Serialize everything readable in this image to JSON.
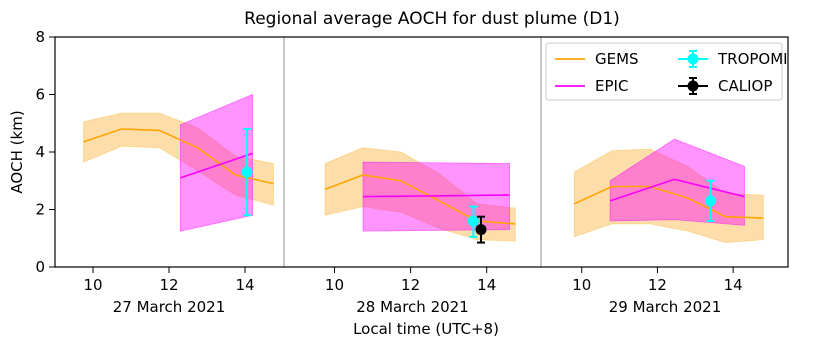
{
  "chart_data": {
    "type": "line",
    "title": "Regional average AOCH for dust plume (D1)",
    "xlabel": "Local time (UTC+8)",
    "ylabel": "AOCH (km)",
    "ylim": [
      0,
      8
    ],
    "yticks": [
      "0",
      "2",
      "4",
      "6",
      "8"
    ],
    "grid": false,
    "legend_position": "top-right",
    "legend": [
      {
        "name": "GEMS",
        "kind": "line",
        "color": "#ffa500"
      },
      {
        "name": "EPIC",
        "kind": "line",
        "color": "#ff00ff"
      },
      {
        "name": "TROPOMI",
        "kind": "errorbar",
        "color": "#00ffff"
      },
      {
        "name": "CALIOP",
        "kind": "errorbar",
        "color": "#000000"
      }
    ],
    "colors": {
      "gems": "#ffa500",
      "gems_fill": "#fcd18d",
      "epic": "#ff00ff",
      "epic_fill": "#ff8cff",
      "overlap_fill": "#fc74ad",
      "tropomi": "#00ffff",
      "caliop": "#000000",
      "separator": "#c8c8c8"
    },
    "panels": [
      {
        "date_label": "27 March 2021",
        "xlim": [
          9.0,
          15.0
        ],
        "xticks": [
          "10",
          "12",
          "14"
        ],
        "gems": {
          "x": [
            9.75,
            10.75,
            11.75,
            12.75,
            13.75,
            14.75
          ],
          "y": [
            4.35,
            4.8,
            4.75,
            4.15,
            3.2,
            2.9
          ],
          "lower": [
            3.65,
            4.2,
            4.15,
            3.35,
            2.5,
            2.15
          ],
          "upper": [
            5.05,
            5.35,
            5.35,
            4.85,
            3.85,
            3.6
          ]
        },
        "epic": {
          "x": [
            12.3,
            14.2
          ],
          "y": [
            3.1,
            3.95
          ],
          "lower": [
            1.25,
            1.8
          ],
          "upper": [
            4.95,
            6.0
          ]
        },
        "tropomi": {
          "x": 14.05,
          "y": 3.3,
          "err_low": 1.5,
          "err_high": 1.5
        },
        "caliop": null
      },
      {
        "date_label": "28 March 2021",
        "xlim": [
          8.7,
          15.4
        ],
        "xticks": [
          "10",
          "12",
          "14"
        ],
        "gems": {
          "x": [
            9.75,
            10.75,
            11.75,
            12.75,
            13.75,
            14.75
          ],
          "y": [
            2.7,
            3.2,
            3.0,
            2.3,
            1.6,
            1.5
          ],
          "lower": [
            1.8,
            2.1,
            1.9,
            1.35,
            0.95,
            0.9
          ],
          "upper": [
            3.6,
            4.15,
            4.0,
            3.25,
            2.2,
            2.05
          ]
        },
        "epic": {
          "x": [
            10.75,
            14.6
          ],
          "y": [
            2.45,
            2.5
          ],
          "lower": [
            1.25,
            1.3
          ],
          "upper": [
            3.65,
            3.6
          ]
        },
        "tropomi": {
          "x": 13.65,
          "y": 1.6,
          "err_low": 0.55,
          "err_high": 0.5
        },
        "caliop": {
          "x": 13.85,
          "y": 1.3,
          "err_low": 0.45,
          "err_high": 0.45
        }
      },
      {
        "date_label": "29 March 2021",
        "xlim": [
          8.95,
          15.45
        ],
        "xticks": [
          "10",
          "12",
          "14"
        ],
        "gems": {
          "x": [
            9.8,
            10.8,
            11.8,
            12.8,
            13.8,
            14.8
          ],
          "y": [
            2.2,
            2.8,
            2.8,
            2.4,
            1.75,
            1.7
          ],
          "lower": [
            1.05,
            1.5,
            1.5,
            1.25,
            0.85,
            0.95
          ],
          "upper": [
            3.3,
            4.05,
            4.1,
            3.5,
            2.55,
            2.5
          ]
        },
        "epic": {
          "x": [
            10.75,
            12.45,
            14.3
          ],
          "y": [
            2.3,
            3.05,
            2.45
          ],
          "lower": [
            1.6,
            1.65,
            1.45
          ],
          "upper": [
            3.0,
            4.45,
            3.5
          ]
        },
        "tropomi": {
          "x": 13.4,
          "y": 2.3,
          "err_low": 0.7,
          "err_high": 0.7
        },
        "caliop": null
      }
    ]
  }
}
